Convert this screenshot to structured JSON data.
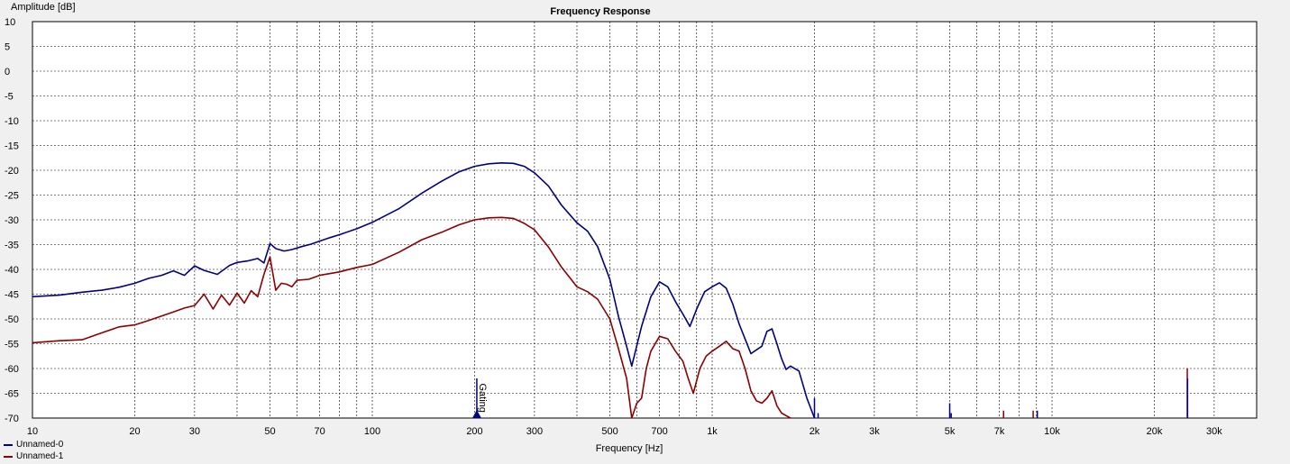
{
  "chart_data": {
    "type": "line",
    "title": "Frequency Response",
    "xlabel": "Frequency [Hz]",
    "ylabel": "Amplitude [dB]",
    "x_scale": "log",
    "xlim": [
      10,
      40000
    ],
    "ylim": [
      -70,
      10
    ],
    "grid": true,
    "legend_position": "bottom-left",
    "y_ticks": [
      10,
      5,
      0,
      -5,
      -10,
      -15,
      -20,
      -25,
      -30,
      -35,
      -40,
      -45,
      -50,
      -55,
      -60,
      -65,
      -70
    ],
    "y_tick_labels": [
      "10",
      "5",
      "0",
      "-5",
      "-10",
      "-15",
      "-20",
      "-25",
      "-30",
      "-35",
      "-40",
      "-45",
      "-50",
      "-55",
      "-60",
      "-65",
      "-70"
    ],
    "x_ticks": [
      10,
      20,
      30,
      50,
      70,
      100,
      200,
      300,
      500,
      700,
      1000,
      2000,
      3000,
      5000,
      7000,
      10000,
      20000,
      30000
    ],
    "x_tick_labels": [
      "10",
      "20",
      "30",
      "50",
      "70",
      "100",
      "200",
      "300",
      "500",
      "700",
      "1k",
      "2k",
      "3k",
      "5k",
      "7k",
      "10k",
      "20k",
      "30k"
    ],
    "marker": {
      "label": "Gating",
      "x": 203
    },
    "series": [
      {
        "name": "Unnamed-0",
        "color": "#000080",
        "x": [
          10,
          12,
          14,
          16,
          18,
          20,
          22,
          24,
          26,
          28,
          30,
          32,
          35,
          38,
          40,
          43,
          46,
          48,
          50,
          52,
          55,
          58,
          62,
          66,
          70,
          75,
          80,
          90,
          100,
          120,
          140,
          160,
          180,
          200,
          220,
          240,
          260,
          280,
          300,
          330,
          360,
          400,
          430,
          460,
          500,
          530,
          560,
          580,
          620,
          660,
          700,
          740,
          780,
          820,
          860,
          900,
          950,
          1000,
          1050,
          1100,
          1150,
          1200,
          1300,
          1400,
          1450,
          1500,
          1550,
          1600,
          1650,
          1700,
          1800,
          1900,
          2000
        ],
        "y": [
          -45.5,
          -45.2,
          -44.6,
          -44.2,
          -43.6,
          -42.8,
          -41.8,
          -41.2,
          -40.3,
          -41.2,
          -39.3,
          -40.2,
          -41.0,
          -39.2,
          -38.6,
          -38.3,
          -37.8,
          -38.7,
          -34.8,
          -35.8,
          -36.3,
          -36.0,
          -35.4,
          -34.9,
          -34.3,
          -33.6,
          -33.0,
          -31.8,
          -30.5,
          -27.7,
          -24.6,
          -22.2,
          -20.3,
          -19.2,
          -18.7,
          -18.5,
          -18.6,
          -19.2,
          -20.5,
          -23.2,
          -27.0,
          -30.6,
          -32.3,
          -35.4,
          -42.0,
          -49.5,
          -55.5,
          -59.5,
          -51.5,
          -45.5,
          -42.5,
          -43.5,
          -46.5,
          -49.0,
          -51.5,
          -48.0,
          -44.5,
          -43.5,
          -42.7,
          -43.8,
          -47.0,
          -51.0,
          -57.0,
          -55.5,
          -52.5,
          -52.0,
          -55.0,
          -58.0,
          -60.2,
          -59.5,
          -60.5,
          -66.0,
          -70.0
        ]
      },
      {
        "name": "Unnamed-1",
        "color": "#8b0000",
        "x": [
          10,
          12,
          14,
          16,
          18,
          20,
          22,
          24,
          26,
          28,
          30,
          32,
          34,
          36,
          38,
          40,
          42,
          44,
          46,
          48,
          50,
          52,
          54,
          56,
          58,
          60,
          65,
          70,
          80,
          90,
          100,
          120,
          140,
          160,
          180,
          200,
          220,
          240,
          260,
          280,
          300,
          330,
          360,
          400,
          430,
          460,
          500,
          530,
          560,
          580,
          600,
          620,
          640,
          660,
          700,
          740,
          780,
          820,
          850,
          880,
          920,
          960,
          1000,
          1050,
          1100,
          1150,
          1200,
          1250,
          1300,
          1350,
          1400,
          1450,
          1500,
          1550,
          1600,
          1650,
          1700
        ],
        "y": [
          -54.8,
          -54.4,
          -54.2,
          -52.8,
          -51.6,
          -51.2,
          -50.3,
          -49.4,
          -48.6,
          -47.8,
          -47.3,
          -45.0,
          -48.0,
          -45.2,
          -47.2,
          -44.8,
          -46.8,
          -44.3,
          -45.5,
          -41.0,
          -37.5,
          -44.2,
          -42.8,
          -43.0,
          -43.5,
          -42.2,
          -42.0,
          -41.2,
          -40.5,
          -39.6,
          -39.0,
          -36.5,
          -34.0,
          -32.5,
          -31.0,
          -30.0,
          -29.6,
          -29.5,
          -29.7,
          -30.7,
          -32.0,
          -35.5,
          -39.5,
          -43.5,
          -44.5,
          -46.0,
          -50.0,
          -56.0,
          -62.0,
          -70.0,
          -67.0,
          -66.0,
          -60.0,
          -56.5,
          -53.5,
          -54.0,
          -56.5,
          -58.5,
          -62.0,
          -65.0,
          -60.0,
          -57.5,
          -56.5,
          -55.5,
          -54.5,
          -56.0,
          -56.5,
          -60.0,
          -64.5,
          -66.5,
          -67.0,
          -66.0,
          -64.5,
          -67.5,
          -69.0,
          -69.5,
          -70.0
        ]
      }
    ]
  }
}
